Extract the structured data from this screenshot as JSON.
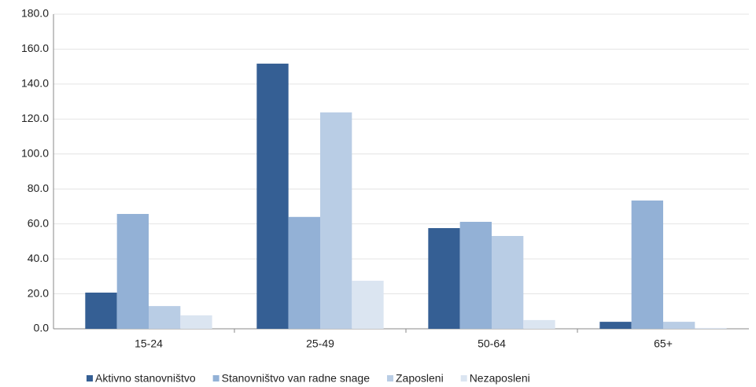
{
  "chart_data": {
    "type": "bar",
    "categories": [
      "15-24",
      "25-49",
      "50-64",
      "65+"
    ],
    "series": [
      {
        "name": "Aktivno stanovništvo",
        "color": "#355f94",
        "values": [
          20.7,
          151.7,
          57.6,
          4
        ]
      },
      {
        "name": "Stanovništvo van radne snage",
        "color": "#93b1d6",
        "values": [
          65.7,
          64,
          61.2,
          73.4
        ]
      },
      {
        "name": "Zaposleni",
        "color": "#b9cde5",
        "values": [
          13,
          123.8,
          53.1,
          4
        ]
      },
      {
        "name": "Nezaposleni",
        "color": "#dbe5f1",
        "values": [
          7.7,
          27.5,
          5,
          0.5
        ]
      }
    ],
    "ylim": [
      0,
      180
    ],
    "yticks": [
      {
        "value": 0,
        "label": "0.0"
      },
      {
        "value": 20,
        "label": "20.0"
      },
      {
        "value": 40,
        "label": "40.0"
      },
      {
        "value": 60,
        "label": "60.0"
      },
      {
        "value": 80,
        "label": "80.0"
      },
      {
        "value": 100,
        "label": "100.0"
      },
      {
        "value": 120,
        "label": "120.0"
      },
      {
        "value": 140,
        "label": "140.0"
      },
      {
        "value": 160,
        "label": "160.0"
      },
      {
        "value": 180,
        "label": "180.0"
      }
    ],
    "grid": true,
    "legend": "bottom"
  }
}
